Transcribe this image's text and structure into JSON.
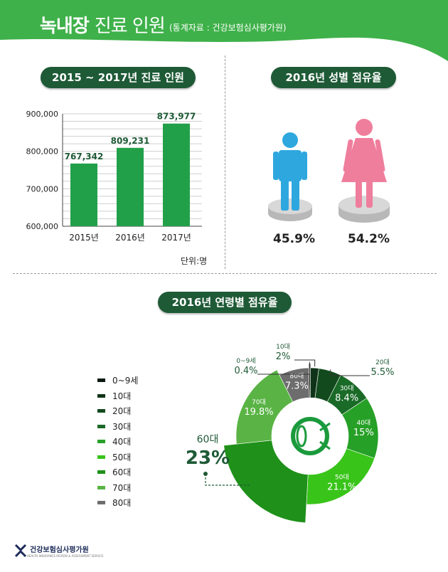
{
  "header": {
    "title_bold": "녹내장",
    "title_light": "진료 인원",
    "source": "(통계자료 : 건강보험심사평가원)"
  },
  "section1": {
    "title": "2015 ~ 2017년 진료 인원",
    "unit": "단위:명"
  },
  "section2": {
    "title": "2016년 성별 점유율",
    "male_pct": "45.9%",
    "female_pct": "54.2%"
  },
  "section3": {
    "title": "2016년 연령별 점유율"
  },
  "colors": {
    "bar": "#22a049",
    "pill": "#1e5a36",
    "header": "#3fb14a",
    "male": "#2ea7df",
    "female": "#ef7e9c"
  },
  "chart_data": [
    {
      "type": "bar",
      "categories": [
        "2015년",
        "2016년",
        "2017년"
      ],
      "values": [
        767342,
        809231,
        873977
      ],
      "value_labels": [
        "767,342",
        "809,231",
        "873,977"
      ],
      "yticks": [
        "600,000",
        "700,000",
        "800,000",
        "900,000"
      ],
      "ylim": [
        600000,
        900000
      ],
      "title": "2015 ~ 2017년 진료 인원",
      "grid": true
    },
    {
      "type": "pie",
      "title": "2016년 연령별 점유율",
      "categories": [
        "0~9세",
        "10대",
        "20대",
        "30대",
        "40대",
        "50대",
        "60대",
        "70대",
        "80대"
      ],
      "label_names": [
        "0~9세",
        "10대",
        "20대",
        "30대",
        "40대",
        "50대",
        "60대",
        "70대",
        "80대"
      ],
      "values": [
        0.4,
        2,
        5.5,
        8.4,
        15,
        21.1,
        23,
        19.8,
        7.3
      ],
      "value_labels": [
        "0.4%",
        "2%",
        "5.5%",
        "8.4%",
        "15%",
        "21.1%",
        "23%",
        "19.8%",
        "7.3%"
      ],
      "colors": [
        "#0a1a0f",
        "#0f3318",
        "#124a1e",
        "#1a6a28",
        "#26a026",
        "#39c41a",
        "#1f901a",
        "#5ab445",
        "#6d6d6d"
      ],
      "legend_placement": "left"
    }
  ],
  "footer": {
    "org": "건강보험심사평가원",
    "org_en": "HEALTH INSURANCE REVIEW & ASSESSMENT SERVICE"
  }
}
